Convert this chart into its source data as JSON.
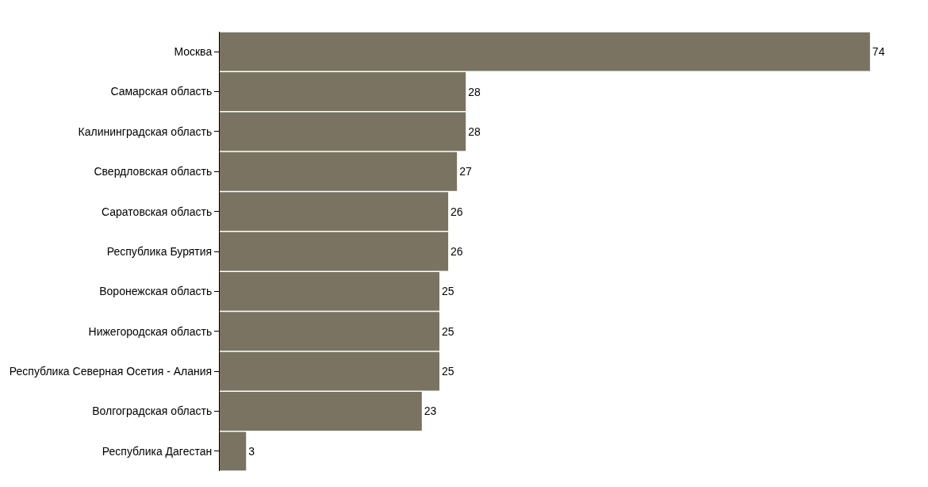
{
  "chart_data": {
    "type": "bar",
    "orientation": "horizontal",
    "categories": [
      "Москва",
      "Самарская область",
      "Калининградская область",
      "Свердловская область",
      "Саратовская область",
      "Республика Бурятия",
      "Воронежская область",
      "Нижегородская область",
      "Республика Северная Осетия - Алания",
      "Волгоградская область",
      "Республика Дагестан"
    ],
    "values": [
      74,
      28,
      28,
      27,
      26,
      26,
      25,
      25,
      25,
      23,
      3
    ],
    "color": "#7a7362",
    "data_labels": true,
    "tick_labels": "y"
  }
}
